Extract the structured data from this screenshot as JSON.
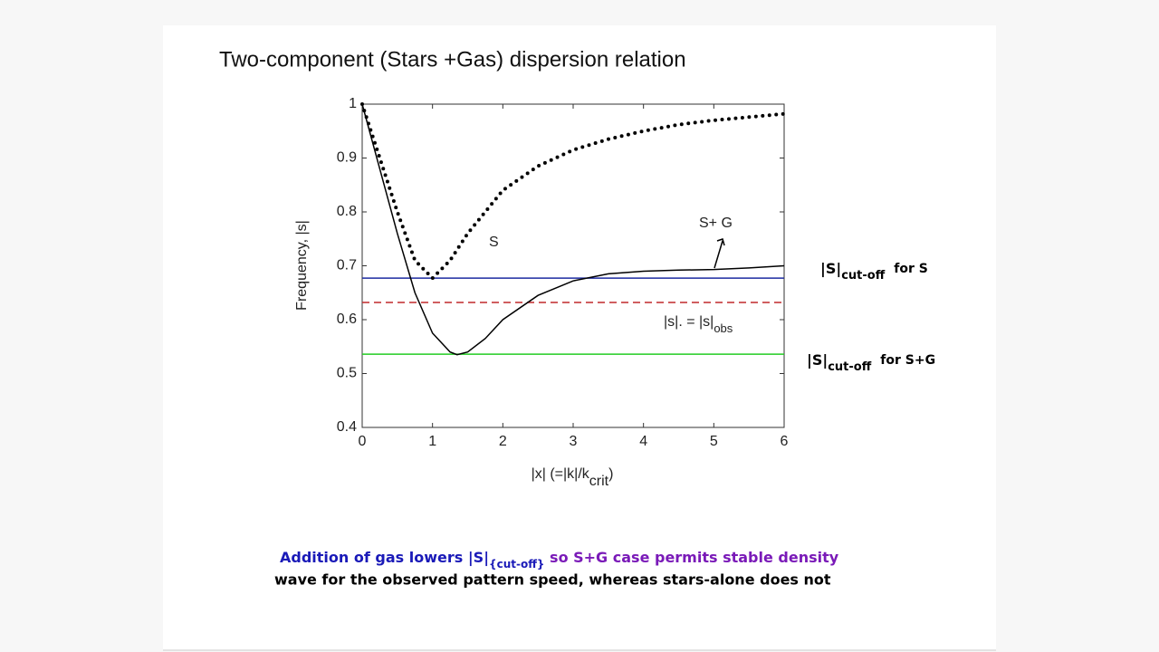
{
  "chart_data": {
    "type": "line",
    "title": "Two-component (Stars +Gas) dispersion relation",
    "xlabel": {
      "main": "|x| (=|k|/k",
      "sub": "crit",
      "tail": ")"
    },
    "ylabel": "Frequency, |s|",
    "xlim": [
      0,
      6
    ],
    "ylim": [
      0.4,
      1
    ],
    "xticks": [
      0,
      1,
      2,
      3,
      4,
      5,
      6
    ],
    "yticks": [
      0.4,
      0.5,
      0.6,
      0.7,
      0.8,
      0.9,
      1
    ],
    "series": [
      {
        "name": "S",
        "style": "dotted",
        "color": "#000000",
        "x": [
          0,
          0.25,
          0.5,
          0.75,
          1,
          1.25,
          1.5,
          1.75,
          2,
          2.5,
          3,
          3.5,
          4,
          4.5,
          5,
          5.5,
          6
        ],
        "values": [
          1,
          0.9,
          0.8,
          0.71,
          0.677,
          0.71,
          0.76,
          0.8,
          0.84,
          0.885,
          0.915,
          0.935,
          0.95,
          0.962,
          0.97,
          0.976,
          0.982
        ]
      },
      {
        "name": "S+ G",
        "style": "solid",
        "color": "#000000",
        "x": [
          0,
          0.25,
          0.5,
          0.75,
          1,
          1.25,
          1.35,
          1.5,
          1.75,
          2,
          2.5,
          3,
          3.5,
          4,
          4.5,
          5,
          5.5,
          6
        ],
        "values": [
          1,
          0.88,
          0.76,
          0.65,
          0.575,
          0.54,
          0.535,
          0.54,
          0.565,
          0.6,
          0.645,
          0.672,
          0.685,
          0.69,
          0.692,
          0.693,
          0.696,
          0.7
        ]
      }
    ],
    "hlines": [
      {
        "value": 0.677,
        "color": "#1c2aa0",
        "dash": false
      },
      {
        "value": 0.632,
        "color": "#c0282c",
        "dash": true
      },
      {
        "value": 0.536,
        "color": "#22cc22",
        "dash": false
      }
    ],
    "obs_label": {
      "main": "|s|. = |s|",
      "sub": "obs"
    },
    "cutoff_s": {
      "main": "|S|",
      "sub": "cut-off",
      "tail": "for S"
    },
    "cutoff_sg": {
      "main": "|S|",
      "sub": "cut-off",
      "tail": "for   S+G"
    },
    "caption": {
      "line1_a": "Addition of gas lowers |S|",
      "line1_sub": "{cut-off}",
      "line1_b": " so S+G case permits stable density",
      "line2": "wave for the observed pattern speed, whereas stars-alone does not"
    }
  }
}
